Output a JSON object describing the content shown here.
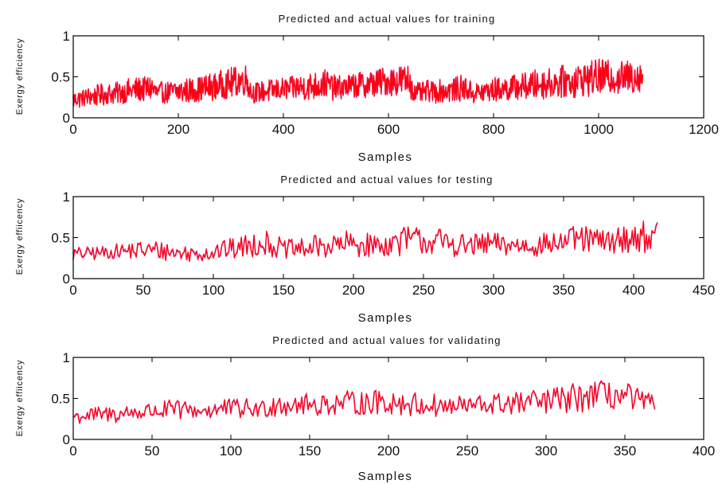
{
  "chart_data": [
    {
      "type": "line",
      "title": "Predicted and actual values for training",
      "xlabel": "Samples",
      "ylabel": "Exergy efficiency",
      "xlim": [
        0,
        1200
      ],
      "ylim": [
        0,
        1
      ],
      "xticks": [
        0,
        200,
        400,
        600,
        800,
        1000,
        1200
      ],
      "yticks": [
        0,
        0.5,
        1
      ],
      "xtick_labels": [
        "0",
        "200",
        "400",
        "600",
        "800",
        "1000",
        "1200"
      ],
      "ytick_labels": [
        "0",
        "0.5",
        "1"
      ],
      "grid": false,
      "n_samples": 1085,
      "series": [
        {
          "color": "#d050b8",
          "x": [
            0,
            50,
            100,
            150,
            160,
            200,
            250,
            300,
            330,
            340,
            400,
            450,
            480,
            500,
            550,
            600,
            640,
            650,
            700,
            750,
            760,
            800,
            850,
            900,
            950,
            1000,
            1050,
            1085
          ],
          "y": [
            0.22,
            0.28,
            0.32,
            0.36,
            0.3,
            0.32,
            0.36,
            0.42,
            0.47,
            0.3,
            0.35,
            0.38,
            0.42,
            0.36,
            0.4,
            0.45,
            0.46,
            0.3,
            0.33,
            0.36,
            0.3,
            0.34,
            0.38,
            0.42,
            0.45,
            0.5,
            0.49,
            0.52
          ],
          "spread": [
            0.1,
            0.12,
            0.14,
            0.16,
            0.12,
            0.14,
            0.16,
            0.18,
            0.18,
            0.12,
            0.14,
            0.16,
            0.18,
            0.14,
            0.16,
            0.18,
            0.2,
            0.12,
            0.14,
            0.16,
            0.12,
            0.14,
            0.16,
            0.18,
            0.2,
            0.22,
            0.2,
            0.2
          ]
        },
        {
          "color": "#ff0010",
          "x": [
            0,
            50,
            100,
            150,
            160,
            200,
            250,
            300,
            330,
            340,
            400,
            450,
            480,
            500,
            550,
            600,
            640,
            650,
            700,
            750,
            760,
            800,
            850,
            900,
            950,
            1000,
            1050,
            1085
          ],
          "y": [
            0.22,
            0.28,
            0.32,
            0.36,
            0.3,
            0.32,
            0.36,
            0.42,
            0.47,
            0.3,
            0.35,
            0.38,
            0.42,
            0.36,
            0.4,
            0.45,
            0.46,
            0.3,
            0.33,
            0.36,
            0.3,
            0.34,
            0.38,
            0.42,
            0.45,
            0.5,
            0.49,
            0.52
          ],
          "spread": [
            0.1,
            0.12,
            0.14,
            0.16,
            0.12,
            0.14,
            0.16,
            0.18,
            0.18,
            0.12,
            0.14,
            0.16,
            0.18,
            0.14,
            0.16,
            0.18,
            0.2,
            0.12,
            0.14,
            0.16,
            0.12,
            0.14,
            0.16,
            0.18,
            0.2,
            0.22,
            0.2,
            0.2
          ]
        }
      ]
    },
    {
      "type": "line",
      "title": "Predicted and actual values for testing",
      "xlabel": "Samples",
      "ylabel": "Exergy effiicency",
      "xlim": [
        0,
        450
      ],
      "ylim": [
        0,
        1
      ],
      "xticks": [
        0,
        50,
        100,
        150,
        200,
        250,
        300,
        350,
        400,
        450
      ],
      "yticks": [
        0,
        0.5,
        1
      ],
      "xtick_labels": [
        "0",
        "50",
        "100",
        "150",
        "200",
        "250",
        "300",
        "350",
        "400",
        "450"
      ],
      "ytick_labels": [
        "0",
        "0.5",
        "1"
      ],
      "grid": false,
      "n_samples": 418,
      "series": [
        {
          "color": "#d050b8",
          "x": [
            0,
            20,
            40,
            60,
            80,
            100,
            120,
            135,
            150,
            170,
            200,
            220,
            240,
            260,
            280,
            300,
            320,
            340,
            360,
            380,
            400,
            418
          ],
          "y": [
            0.3,
            0.32,
            0.34,
            0.35,
            0.3,
            0.33,
            0.38,
            0.45,
            0.35,
            0.38,
            0.42,
            0.4,
            0.48,
            0.45,
            0.4,
            0.42,
            0.4,
            0.42,
            0.48,
            0.45,
            0.5,
            0.52
          ],
          "spread": [
            0.08,
            0.08,
            0.1,
            0.12,
            0.1,
            0.12,
            0.14,
            0.16,
            0.12,
            0.14,
            0.16,
            0.14,
            0.18,
            0.16,
            0.14,
            0.14,
            0.12,
            0.14,
            0.16,
            0.14,
            0.18,
            0.18
          ]
        },
        {
          "color": "#ff0010",
          "x": [
            0,
            20,
            40,
            60,
            80,
            100,
            120,
            135,
            150,
            170,
            200,
            220,
            240,
            260,
            280,
            300,
            320,
            340,
            360,
            380,
            400,
            418
          ],
          "y": [
            0.3,
            0.32,
            0.34,
            0.35,
            0.3,
            0.33,
            0.38,
            0.45,
            0.35,
            0.38,
            0.42,
            0.4,
            0.48,
            0.45,
            0.4,
            0.42,
            0.4,
            0.42,
            0.48,
            0.45,
            0.5,
            0.52
          ],
          "spread": [
            0.08,
            0.08,
            0.1,
            0.12,
            0.1,
            0.12,
            0.14,
            0.16,
            0.12,
            0.14,
            0.16,
            0.14,
            0.18,
            0.16,
            0.14,
            0.14,
            0.12,
            0.14,
            0.16,
            0.14,
            0.18,
            0.18
          ]
        }
      ]
    },
    {
      "type": "line",
      "title": "Predicted and actual values for validating",
      "xlabel": "Samples",
      "ylabel": "Exergy effiicency",
      "xlim": [
        0,
        400
      ],
      "ylim": [
        0,
        1
      ],
      "xticks": [
        0,
        50,
        100,
        150,
        200,
        250,
        300,
        350,
        400
      ],
      "yticks": [
        0,
        0.5,
        1
      ],
      "xtick_labels": [
        "0",
        "50",
        "100",
        "150",
        "200",
        "250",
        "300",
        "350",
        "400"
      ],
      "ytick_labels": [
        "0",
        "0.5",
        "1"
      ],
      "grid": false,
      "n_samples": 370,
      "series": [
        {
          "color": "#d050b8",
          "x": [
            0,
            20,
            40,
            60,
            80,
            100,
            120,
            130,
            150,
            170,
            200,
            220,
            240,
            260,
            280,
            300,
            320,
            330,
            350,
            370
          ],
          "y": [
            0.28,
            0.3,
            0.33,
            0.36,
            0.35,
            0.38,
            0.37,
            0.45,
            0.42,
            0.44,
            0.46,
            0.42,
            0.4,
            0.42,
            0.44,
            0.46,
            0.5,
            0.55,
            0.52,
            0.4
          ],
          "spread": [
            0.08,
            0.1,
            0.1,
            0.12,
            0.12,
            0.12,
            0.12,
            0.16,
            0.14,
            0.14,
            0.16,
            0.14,
            0.12,
            0.14,
            0.14,
            0.16,
            0.18,
            0.18,
            0.18,
            0.12
          ]
        },
        {
          "color": "#ff0010",
          "x": [
            0,
            20,
            40,
            60,
            80,
            100,
            120,
            130,
            150,
            170,
            200,
            220,
            240,
            260,
            280,
            300,
            320,
            330,
            350,
            370
          ],
          "y": [
            0.28,
            0.3,
            0.33,
            0.36,
            0.35,
            0.38,
            0.37,
            0.45,
            0.42,
            0.44,
            0.46,
            0.42,
            0.4,
            0.42,
            0.44,
            0.46,
            0.5,
            0.55,
            0.52,
            0.4
          ],
          "spread": [
            0.08,
            0.1,
            0.1,
            0.12,
            0.12,
            0.12,
            0.12,
            0.16,
            0.14,
            0.14,
            0.16,
            0.14,
            0.12,
            0.14,
            0.14,
            0.16,
            0.18,
            0.18,
            0.18,
            0.12
          ]
        }
      ]
    }
  ]
}
